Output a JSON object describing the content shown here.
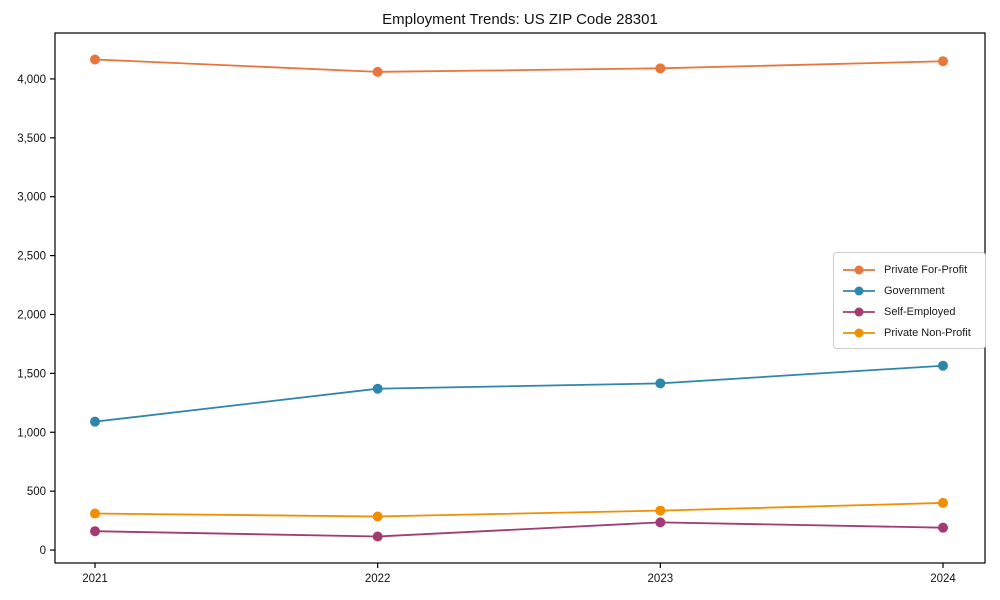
{
  "page": {
    "background": "#ffffff",
    "text_color": "#111111",
    "axis_color": "#000000",
    "legend_border_color": "#cccccc"
  },
  "chart_data": {
    "type": "line",
    "title": "Employment Trends: US ZIP Code 28301",
    "xlabel": "",
    "ylabel": "",
    "x": [
      2021,
      2022,
      2023,
      2024
    ],
    "x_tick_labels": [
      "2021",
      "2022",
      "2023",
      "2024"
    ],
    "y_ticks": [
      0,
      500,
      1000,
      1500,
      2000,
      2500,
      3000,
      3500,
      4000
    ],
    "y_tick_labels": [
      "0",
      "500",
      "1,000",
      "1,500",
      "2,000",
      "2,500",
      "3,000",
      "3,500",
      "4,000"
    ],
    "ylim": [
      -110,
      4390
    ],
    "grid": false,
    "legend_position": "center-right",
    "marker": "circle",
    "series": [
      {
        "name": "Private For-Profit",
        "color": "#e8763c",
        "values": [
          4165,
          4060,
          4090,
          4150
        ]
      },
      {
        "name": "Government",
        "color": "#2e86ab",
        "values": [
          1090,
          1370,
          1415,
          1565
        ]
      },
      {
        "name": "Self-Employed",
        "color": "#a23b72",
        "values": [
          160,
          115,
          235,
          190
        ]
      },
      {
        "name": "Private Non-Profit",
        "color": "#f18f01",
        "values": [
          310,
          285,
          335,
          400
        ]
      }
    ]
  }
}
